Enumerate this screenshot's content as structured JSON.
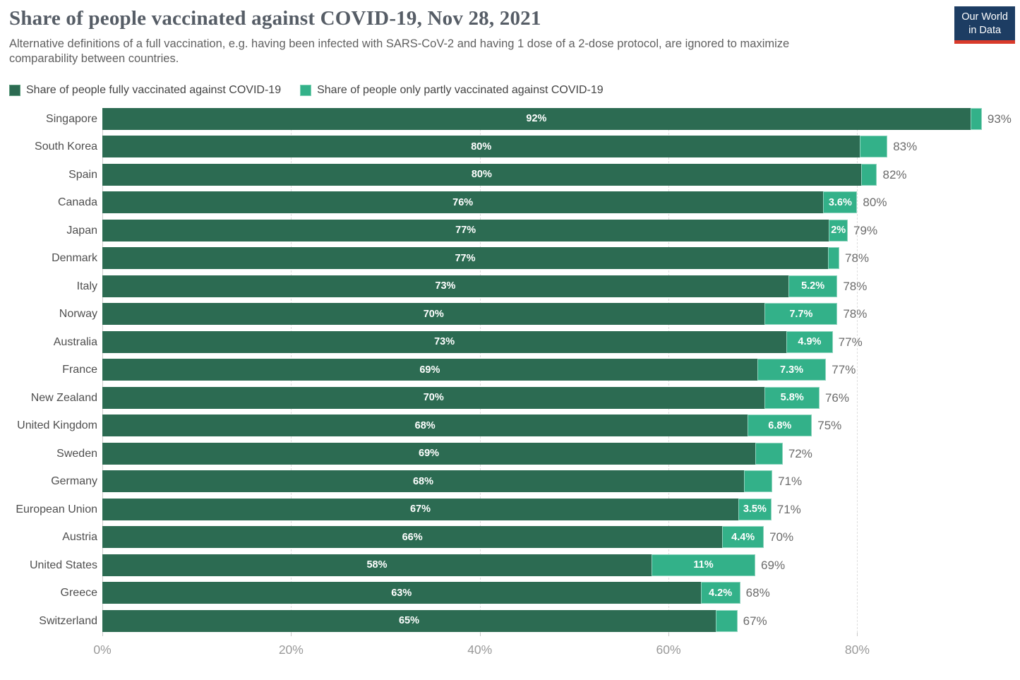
{
  "page": {
    "title": "Share of people vaccinated against COVID-19, Nov 28, 2021",
    "subtitle": "Alternative definitions of a full vaccination, e.g. having been infected with SARS-CoV-2 and having 1 dose of a 2-dose protocol, are ignored to maximize comparability between countries."
  },
  "logo": {
    "line1": "Our World",
    "line2": "in Data",
    "bg_color": "#1d3d63",
    "accent_color": "#d93a2b"
  },
  "legend": [
    {
      "label": "Share of people fully vaccinated against COVID-19",
      "color": "#2c6b52"
    },
    {
      "label": "Share of people only partly vaccinated against COVID-19",
      "color": "#33b189"
    }
  ],
  "chart_data": {
    "type": "bar",
    "orientation": "horizontal",
    "stacked": true,
    "grid": "dashed-vertical",
    "categories": [
      "Singapore",
      "South Korea",
      "Spain",
      "Canada",
      "Japan",
      "Denmark",
      "Italy",
      "Norway",
      "Australia",
      "France",
      "New Zealand",
      "United Kingdom",
      "Sweden",
      "Germany",
      "European Union",
      "Austria",
      "United States",
      "Greece",
      "Switzerland"
    ],
    "series": [
      {
        "name": "Share of people fully vaccinated against COVID-19",
        "color": "#2c6b52",
        "values": [
          92,
          80.3,
          80.4,
          76.4,
          77,
          76.9,
          72.7,
          70.2,
          72.5,
          69.4,
          70.2,
          68.4,
          69.2,
          68,
          67.4,
          65.7,
          58.2,
          63.4,
          65
        ]
      },
      {
        "name": "Share of people only partly vaccinated against COVID-19",
        "color": "#33b189",
        "values": [
          1.2,
          2.9,
          1.7,
          3.6,
          2,
          1.2,
          5.2,
          7.7,
          4.9,
          7.3,
          5.8,
          6.8,
          2.9,
          3,
          3.5,
          4.4,
          11,
          4.2,
          2.3
        ]
      }
    ],
    "bar_labels": {
      "full": [
        "92%",
        "80%",
        "80%",
        "76%",
        "77%",
        "77%",
        "73%",
        "70%",
        "73%",
        "69%",
        "70%",
        "68%",
        "69%",
        "68%",
        "67%",
        "66%",
        "58%",
        "63%",
        "65%"
      ],
      "partial": [
        "",
        "",
        "",
        "3.6%",
        "2%",
        "",
        "5.2%",
        "7.7%",
        "4.9%",
        "7.3%",
        "5.8%",
        "6.8%",
        "",
        "",
        "3.5%",
        "4.4%",
        "11%",
        "4.2%",
        ""
      ],
      "total": [
        "93%",
        "83%",
        "82%",
        "80%",
        "79%",
        "78%",
        "78%",
        "78%",
        "77%",
        "77%",
        "76%",
        "75%",
        "72%",
        "71%",
        "71%",
        "70%",
        "69%",
        "68%",
        "67%"
      ]
    },
    "x_ticks": [
      "0%",
      "20%",
      "40%",
      "60%",
      "80%"
    ],
    "x_tick_values": [
      0,
      20,
      40,
      60,
      80
    ],
    "xlim": [
      0,
      96.5
    ]
  }
}
